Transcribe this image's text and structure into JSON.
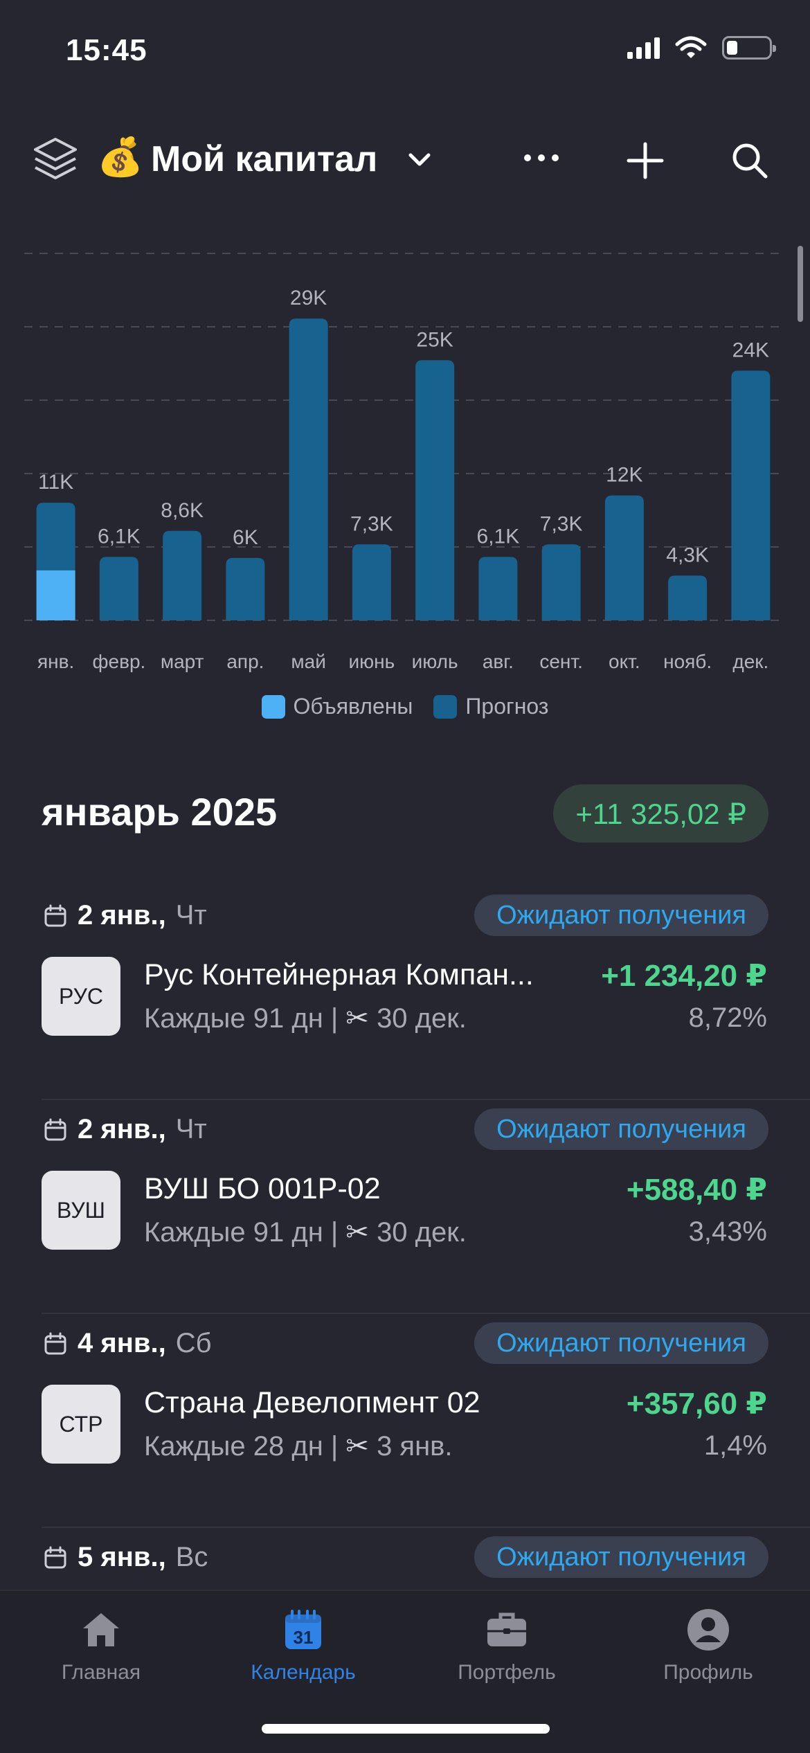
{
  "status_bar": {
    "time": "15:45",
    "battery_level": 0.25
  },
  "header": {
    "emoji": "💰",
    "title": "Мой капитал"
  },
  "chart_data": {
    "type": "bar",
    "categories": [
      "янв.",
      "февр.",
      "март",
      "апр.",
      "май",
      "июнь",
      "июль",
      "авг.",
      "сент.",
      "окт.",
      "нояб.",
      "дек."
    ],
    "value_labels": [
      "11K",
      "6,1K",
      "8,6K",
      "6K",
      "29K",
      "7,3K",
      "25K",
      "6,1K",
      "7,3K",
      "12K",
      "4,3K",
      "24K"
    ],
    "series": [
      {
        "name": "Объявлены",
        "color": "#4eb0f5",
        "values": [
          4.8,
          0,
          0,
          0,
          0,
          0,
          0,
          0,
          0,
          0,
          0,
          0
        ]
      },
      {
        "name": "Прогноз",
        "color": "#17628f",
        "values": [
          11.3,
          6.1,
          8.6,
          6.0,
          29.0,
          7.3,
          25.0,
          6.1,
          7.3,
          12.0,
          4.3,
          24.0
        ]
      }
    ],
    "ylim": [
      0,
      35
    ],
    "grid": true,
    "legend": "bottom"
  },
  "month": {
    "title": "январь 2025",
    "total": "+11 325,02 ₽"
  },
  "entries": [
    {
      "date": "2 янв.,",
      "weekday": "Чт",
      "status": "Ожидают получения",
      "ticker": "РУС",
      "name": "Рус Контейнерная Компан...",
      "period": "Каждые 91 дн |",
      "cut_date": "30 дек.",
      "amount": "+1 234,20 ₽",
      "yield": "8,72%"
    },
    {
      "date": "2 янв.,",
      "weekday": "Чт",
      "status": "Ожидают получения",
      "ticker": "ВУШ",
      "name": "ВУШ БО 001Р-02",
      "period": "Каждые 91 дн |",
      "cut_date": "30 дек.",
      "amount": "+588,40 ₽",
      "yield": "3,43%"
    },
    {
      "date": "4 янв.,",
      "weekday": "Сб",
      "status": "Ожидают получения",
      "ticker": "СТР",
      "name": "Страна Девелопмент 02",
      "period": "Каждые 28 дн |",
      "cut_date": "3 янв.",
      "amount": "+357,60 ₽",
      "yield": "1,4%"
    },
    {
      "date": "5 янв.,",
      "weekday": "Вс",
      "status": "Ожидают получения",
      "ticker": "",
      "name": "",
      "period": "",
      "cut_date": "",
      "amount": "",
      "yield": ""
    }
  ],
  "tab_bar": {
    "home": "Главная",
    "calendar": "Календарь",
    "calendar_day": "31",
    "portfolio": "Портфель",
    "profile": "Профиль"
  },
  "colors": {
    "accent": "#2f83e6",
    "positive": "#4dd68e",
    "status_pill_text": "#2ea8ef"
  }
}
